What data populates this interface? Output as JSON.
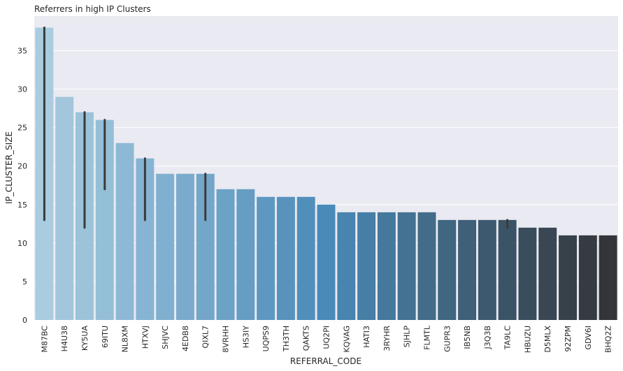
{
  "chart_data": {
    "type": "bar",
    "title": "Referrers in high IP Clusters",
    "xlabel": "REFERRAL_CODE",
    "ylabel": "IP_CLUSTER_SIZE",
    "ylim": [
      0,
      39.5
    ],
    "yticks": [
      0,
      5,
      10,
      15,
      20,
      25,
      30,
      35
    ],
    "grid": true,
    "categories": [
      "M87BC",
      "H4U38",
      "KY5UA",
      "69ITU",
      "NL8XM",
      "HTXVJ",
      "SHJVC",
      "4EDB8",
      "QIXL7",
      "8VRHH",
      "HS3IY",
      "UQPS9",
      "TH3TH",
      "QAKTS",
      "UQ2PI",
      "KQVAG",
      "HATI3",
      "3RYHR",
      "SJHLP",
      "FLMTL",
      "GUPR3",
      "IB5NB",
      "J3Q3B",
      "TA9LC",
      "HBUZU",
      "D5MLX",
      "92ZPM",
      "GDV6I",
      "BHQ2Z"
    ],
    "values": [
      38,
      29,
      27,
      26,
      23,
      21,
      19,
      19,
      19,
      17,
      17,
      16,
      16,
      16,
      15,
      14,
      14,
      14,
      14,
      14,
      13,
      13,
      13,
      13,
      12,
      12,
      11,
      11,
      11
    ],
    "error_bars": [
      {
        "category": "M87BC",
        "low": 13,
        "high": 38
      },
      {
        "category": "KY5UA",
        "low": 12,
        "high": 27
      },
      {
        "category": "69ITU",
        "low": 17,
        "high": 26
      },
      {
        "category": "HTXVJ",
        "low": 13,
        "high": 21
      },
      {
        "category": "QIXL7",
        "low": 13,
        "high": 19
      },
      {
        "category": "TA9LC",
        "low": 12,
        "high": 13
      }
    ],
    "palette_start": "#a9cce0",
    "palette_mid": "#4a8ab8",
    "palette_end": "#333538",
    "background": "#eaeaf2",
    "grid_color": "#ffffff",
    "error_color": "#3a3a3a"
  }
}
